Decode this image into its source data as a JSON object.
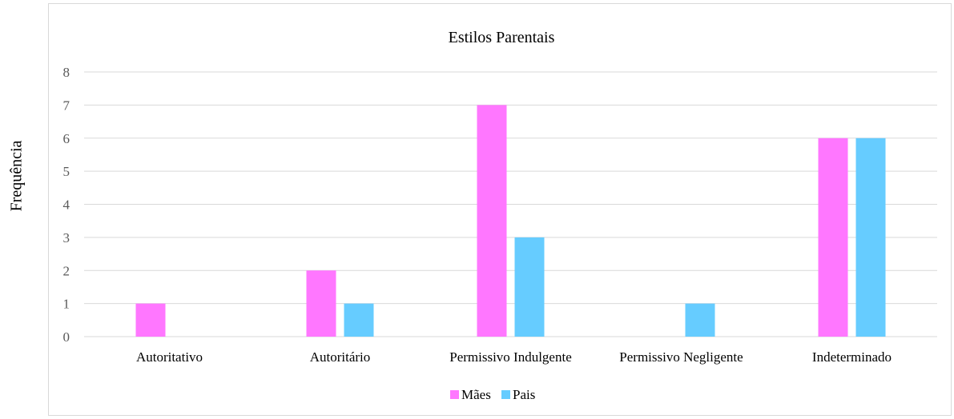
{
  "chart_data": {
    "type": "bar",
    "title": "Estilos Parentais",
    "xlabel": "",
    "ylabel": "Frequência",
    "ylim": [
      0,
      8
    ],
    "yticks": [
      0,
      1,
      2,
      3,
      4,
      5,
      6,
      7,
      8
    ],
    "grid": true,
    "legend": "bottom",
    "categories": [
      "Autoritativo",
      "Autoritário",
      "Permissivo Indulgente",
      "Permissivo Negligente",
      "Indeterminado"
    ],
    "series": [
      {
        "name": "Mães",
        "values": [
          1,
          2,
          7,
          null,
          6
        ],
        "color": "#ff77ff"
      },
      {
        "name": "Pais",
        "values": [
          null,
          1,
          3,
          1,
          6
        ],
        "color": "#66ccff"
      }
    ]
  }
}
